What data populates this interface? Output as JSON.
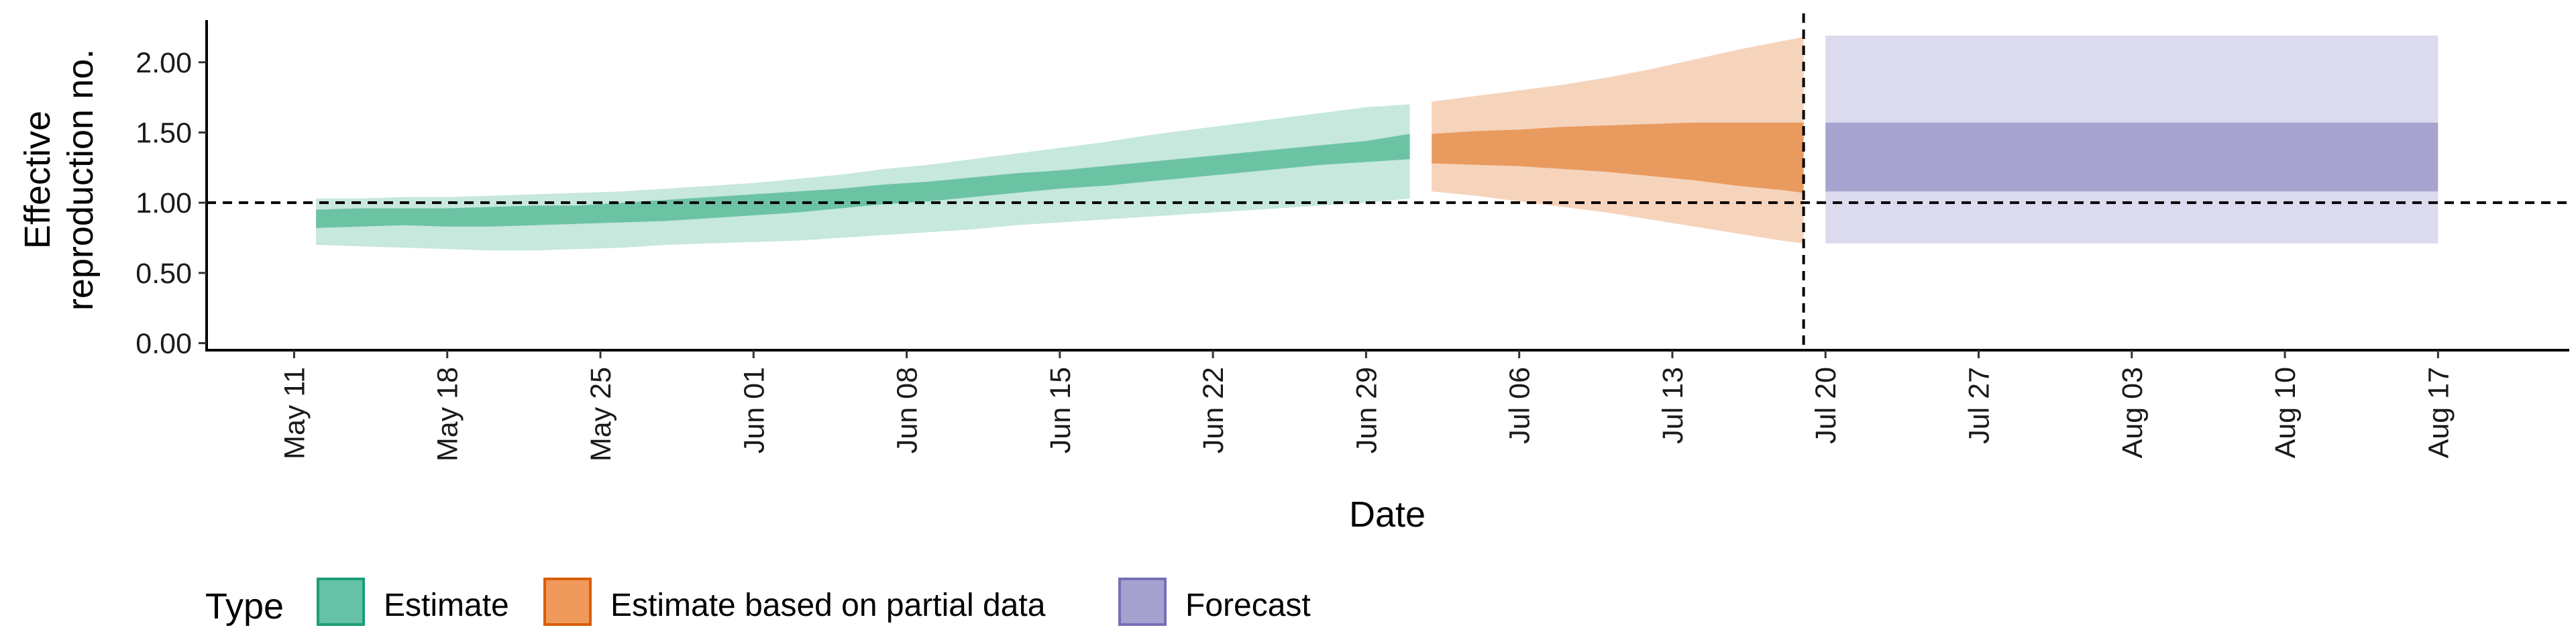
{
  "chart_data": {
    "type": "area",
    "xlabel": "Date",
    "ylabel": [
      "Effective",
      "reproduction no."
    ],
    "ylim": [
      -0.05,
      2.3
    ],
    "yticks": [
      0.0,
      0.5,
      1.0,
      1.5,
      2.0
    ],
    "ytick_labels": [
      "0.00",
      "0.50",
      "1.00",
      "1.50",
      "2.00"
    ],
    "xlim": [
      "2020-05-07",
      "2020-08-23"
    ],
    "xticks": [
      "2020-05-11",
      "2020-05-18",
      "2020-05-25",
      "2020-06-01",
      "2020-06-08",
      "2020-06-15",
      "2020-06-22",
      "2020-06-29",
      "2020-07-06",
      "2020-07-13",
      "2020-07-20",
      "2020-07-27",
      "2020-08-03",
      "2020-08-10",
      "2020-08-17"
    ],
    "xtick_labels": [
      "May 11",
      "May 18",
      "May 25",
      "Jun 01",
      "Jun 08",
      "Jun 15",
      "Jun 22",
      "Jun 29",
      "Jul 06",
      "Jul 13",
      "Jul 20",
      "Jul 27",
      "Aug 03",
      "Aug 10",
      "Aug 17"
    ],
    "reference_line_y": 1.0,
    "forecast_start_date": "2020-07-19",
    "grid": false,
    "legend": {
      "title": "Type",
      "position": "bottom-left",
      "entries": [
        {
          "label": "Estimate",
          "fill": "#66c2a5",
          "border": "#1b9e77"
        },
        {
          "label": "Estimate based on partial data",
          "fill": "#ef9a5a",
          "border": "#d95f02"
        },
        {
          "label": "Forecast",
          "fill": "#a5a2cf",
          "border": "#7570b3"
        }
      ]
    },
    "series": [
      {
        "name": "Estimate",
        "colors": {
          "outer": "#c6e8dd",
          "inner": "#6cc3a4"
        },
        "x": [
          "2020-05-12",
          "2020-05-14",
          "2020-05-16",
          "2020-05-18",
          "2020-05-20",
          "2020-05-22",
          "2020-05-24",
          "2020-05-26",
          "2020-05-28",
          "2020-05-30",
          "2020-06-01",
          "2020-06-03",
          "2020-06-05",
          "2020-06-07",
          "2020-06-09",
          "2020-06-11",
          "2020-06-13",
          "2020-06-15",
          "2020-06-17",
          "2020-06-19",
          "2020-06-21",
          "2020-06-23",
          "2020-06-25",
          "2020-06-27",
          "2020-06-29",
          "2020-07-01"
        ],
        "lower90": [
          0.7,
          0.69,
          0.68,
          0.67,
          0.66,
          0.66,
          0.67,
          0.68,
          0.7,
          0.71,
          0.72,
          0.73,
          0.75,
          0.77,
          0.79,
          0.81,
          0.84,
          0.86,
          0.88,
          0.9,
          0.92,
          0.94,
          0.96,
          0.98,
          1.0,
          1.03
        ],
        "lower50": [
          0.82,
          0.83,
          0.84,
          0.83,
          0.83,
          0.84,
          0.85,
          0.86,
          0.87,
          0.89,
          0.91,
          0.93,
          0.96,
          0.99,
          1.01,
          1.04,
          1.07,
          1.1,
          1.12,
          1.15,
          1.18,
          1.21,
          1.24,
          1.27,
          1.29,
          1.31
        ],
        "upper50": [
          0.95,
          0.96,
          0.96,
          0.96,
          0.97,
          0.98,
          0.98,
          1.0,
          1.02,
          1.04,
          1.06,
          1.08,
          1.1,
          1.13,
          1.15,
          1.18,
          1.21,
          1.23,
          1.26,
          1.29,
          1.32,
          1.35,
          1.38,
          1.41,
          1.44,
          1.49
        ],
        "upper90": [
          1.03,
          1.03,
          1.04,
          1.04,
          1.05,
          1.06,
          1.07,
          1.08,
          1.1,
          1.12,
          1.14,
          1.17,
          1.2,
          1.24,
          1.27,
          1.31,
          1.35,
          1.39,
          1.43,
          1.48,
          1.52,
          1.56,
          1.6,
          1.64,
          1.68,
          1.7
        ]
      },
      {
        "name": "Estimate based on partial data",
        "colors": {
          "outer": "#f6d4bc",
          "inner": "#e99a5e"
        },
        "x": [
          "2020-07-02",
          "2020-07-04",
          "2020-07-06",
          "2020-07-08",
          "2020-07-10",
          "2020-07-12",
          "2020-07-14",
          "2020-07-16",
          "2020-07-18",
          "2020-07-19"
        ],
        "lower90": [
          1.08,
          1.05,
          1.01,
          0.97,
          0.93,
          0.88,
          0.83,
          0.78,
          0.73,
          0.71
        ],
        "lower50": [
          1.28,
          1.27,
          1.26,
          1.24,
          1.22,
          1.19,
          1.16,
          1.12,
          1.09,
          1.07
        ],
        "upper50": [
          1.49,
          1.51,
          1.52,
          1.54,
          1.55,
          1.56,
          1.57,
          1.57,
          1.57,
          1.57
        ],
        "upper90": [
          1.72,
          1.76,
          1.8,
          1.84,
          1.89,
          1.95,
          2.02,
          2.09,
          2.15,
          2.18
        ]
      },
      {
        "name": "Forecast",
        "colors": {
          "outer": "#dcdbed",
          "inner": "#a8a4d0"
        },
        "x": [
          "2020-07-20",
          "2020-08-17"
        ],
        "lower90": [
          0.71,
          0.71
        ],
        "lower50": [
          1.08,
          1.08
        ],
        "upper50": [
          1.57,
          1.57
        ],
        "upper90": [
          2.19,
          2.19
        ]
      }
    ]
  }
}
